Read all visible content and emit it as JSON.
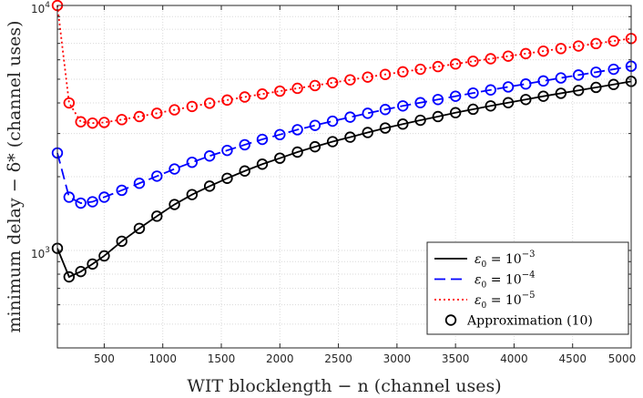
{
  "chart_data": {
    "type": "line",
    "title": "",
    "xlabel": "WIT blocklength − n (channel uses)",
    "ylabel": "minimum delay − δ* (channel uses)",
    "x_scale": "linear",
    "y_scale": "log",
    "xlim": [
      100,
      5000
    ],
    "ylim": [
      400,
      10000
    ],
    "x_ticks": [
      500,
      1000,
      1500,
      2000,
      2500,
      3000,
      3500,
      4000,
      4500,
      5000
    ],
    "y_tick_labels": [
      {
        "value": 1000,
        "label": "10",
        "exponent": "3"
      },
      {
        "value": 10000,
        "label": "10",
        "exponent": "4"
      }
    ],
    "grid": true,
    "legend_position": "bottom-right",
    "series": [
      {
        "name": "ε₀ = 10⁻³",
        "legend_main": "ε",
        "legend_sub": "0",
        "legend_eq": " = 10",
        "legend_exp": "−3",
        "color": "#000000",
        "line_style": "solid",
        "x": [
          100,
          200,
          300,
          400,
          500,
          650,
          800,
          950,
          1100,
          1250,
          1400,
          1550,
          1700,
          1850,
          2000,
          2150,
          2300,
          2450,
          2600,
          2750,
          2900,
          3050,
          3200,
          3350,
          3500,
          3650,
          3800,
          3950,
          4100,
          4250,
          4400,
          4550,
          4700,
          4850,
          5000
        ],
        "y": [
          1020,
          780,
          820,
          880,
          950,
          1090,
          1230,
          1380,
          1540,
          1690,
          1830,
          1970,
          2110,
          2250,
          2380,
          2520,
          2650,
          2780,
          2900,
          3030,
          3160,
          3280,
          3400,
          3520,
          3650,
          3770,
          3890,
          4010,
          4130,
          4260,
          4380,
          4500,
          4630,
          4760,
          4900
        ]
      },
      {
        "name": "ε₀ = 10⁻⁴",
        "legend_main": "ε",
        "legend_sub": "0",
        "legend_eq": " = 10",
        "legend_exp": "−4",
        "color": "#0000ff",
        "line_style": "dashed",
        "x": [
          100,
          200,
          300,
          400,
          500,
          650,
          800,
          950,
          1100,
          1250,
          1400,
          1550,
          1700,
          1850,
          2000,
          2150,
          2300,
          2450,
          2600,
          2750,
          2900,
          3050,
          3200,
          3350,
          3500,
          3650,
          3800,
          3950,
          4100,
          4250,
          4400,
          4550,
          4700,
          4850,
          5000
        ],
        "y": [
          2500,
          1650,
          1560,
          1580,
          1650,
          1760,
          1880,
          2010,
          2150,
          2290,
          2430,
          2560,
          2700,
          2840,
          2970,
          3110,
          3240,
          3370,
          3500,
          3630,
          3760,
          3890,
          4010,
          4130,
          4260,
          4390,
          4520,
          4650,
          4780,
          4920,
          5060,
          5200,
          5340,
          5490,
          5650
        ]
      },
      {
        "name": "ε₀ = 10⁻⁵",
        "legend_main": "ε",
        "legend_sub": "0",
        "legend_eq": " = 10",
        "legend_exp": "−5",
        "color": "#ff0000",
        "line_style": "dotted",
        "x": [
          100,
          200,
          300,
          400,
          500,
          650,
          800,
          950,
          1100,
          1250,
          1400,
          1550,
          1700,
          1850,
          2000,
          2150,
          2300,
          2450,
          2600,
          2750,
          2900,
          3050,
          3200,
          3350,
          3500,
          3650,
          3800,
          3950,
          4100,
          4250,
          4400,
          4550,
          4700,
          4850,
          5000
        ],
        "y": [
          10000,
          4000,
          3350,
          3310,
          3330,
          3420,
          3520,
          3630,
          3750,
          3870,
          3990,
          4110,
          4230,
          4350,
          4470,
          4590,
          4710,
          4840,
          4970,
          5100,
          5230,
          5360,
          5490,
          5630,
          5770,
          5920,
          6060,
          6210,
          6360,
          6510,
          6670,
          6830,
          6990,
          7160,
          7330
        ]
      }
    ],
    "markers": {
      "name": "Approximation (10)",
      "symbol": "circle",
      "color": "#000000"
    }
  }
}
